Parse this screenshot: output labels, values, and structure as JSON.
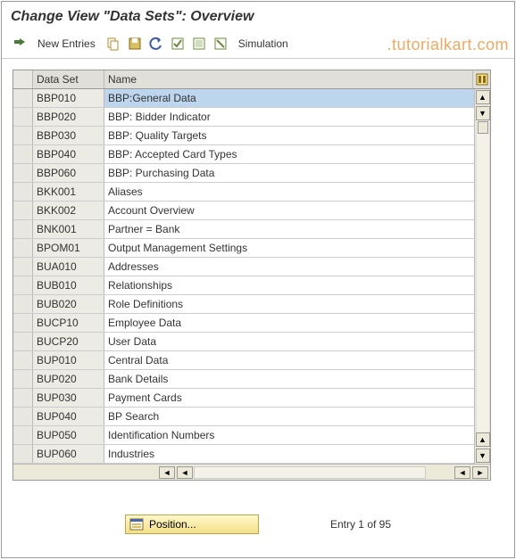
{
  "window": {
    "title": "Change View \"Data Sets\": Overview"
  },
  "watermark": ".tutorialkart.com",
  "toolbar": {
    "new_entries_label": "New Entries",
    "simulation_label": "Simulation"
  },
  "grid": {
    "columns": {
      "data_set": "Data Set",
      "name": "Name"
    },
    "rows": [
      {
        "ds": "BBP010",
        "name": "BBP:General Data",
        "selected": true
      },
      {
        "ds": "BBP020",
        "name": "BBP: Bidder Indicator"
      },
      {
        "ds": "BBP030",
        "name": "BBP: Quality Targets"
      },
      {
        "ds": "BBP040",
        "name": "BBP: Accepted Card Types"
      },
      {
        "ds": "BBP060",
        "name": "BBP: Purchasing Data"
      },
      {
        "ds": "BKK001",
        "name": "Aliases"
      },
      {
        "ds": "BKK002",
        "name": "Account Overview"
      },
      {
        "ds": "BNK001",
        "name": "Partner = Bank"
      },
      {
        "ds": "BPOM01",
        "name": "Output Management Settings"
      },
      {
        "ds": "BUA010",
        "name": "Addresses"
      },
      {
        "ds": "BUB010",
        "name": "Relationships"
      },
      {
        "ds": "BUB020",
        "name": "Role Definitions"
      },
      {
        "ds": "BUCP10",
        "name": "Employee Data"
      },
      {
        "ds": "BUCP20",
        "name": "User Data"
      },
      {
        "ds": "BUP010",
        "name": "Central Data"
      },
      {
        "ds": "BUP020",
        "name": "Bank Details"
      },
      {
        "ds": "BUP030",
        "name": "Payment Cards"
      },
      {
        "ds": "BUP040",
        "name": "BP Search"
      },
      {
        "ds": "BUP050",
        "name": "Identification Numbers"
      },
      {
        "ds": "BUP060",
        "name": "Industries"
      }
    ]
  },
  "footer": {
    "position_label": "Position...",
    "entry_text": "Entry 1 of 95"
  },
  "colors": {
    "header_bg": "#e0dfd8",
    "panel_bg": "#f5f4ef",
    "row_ds_bg": "#ecebe4",
    "selected_bg": "#bdd6ee",
    "border": "#999999",
    "watermark": "#f0a050",
    "position_btn_bg_top": "#fff8c8",
    "position_btn_bg_bottom": "#f4e08a"
  }
}
